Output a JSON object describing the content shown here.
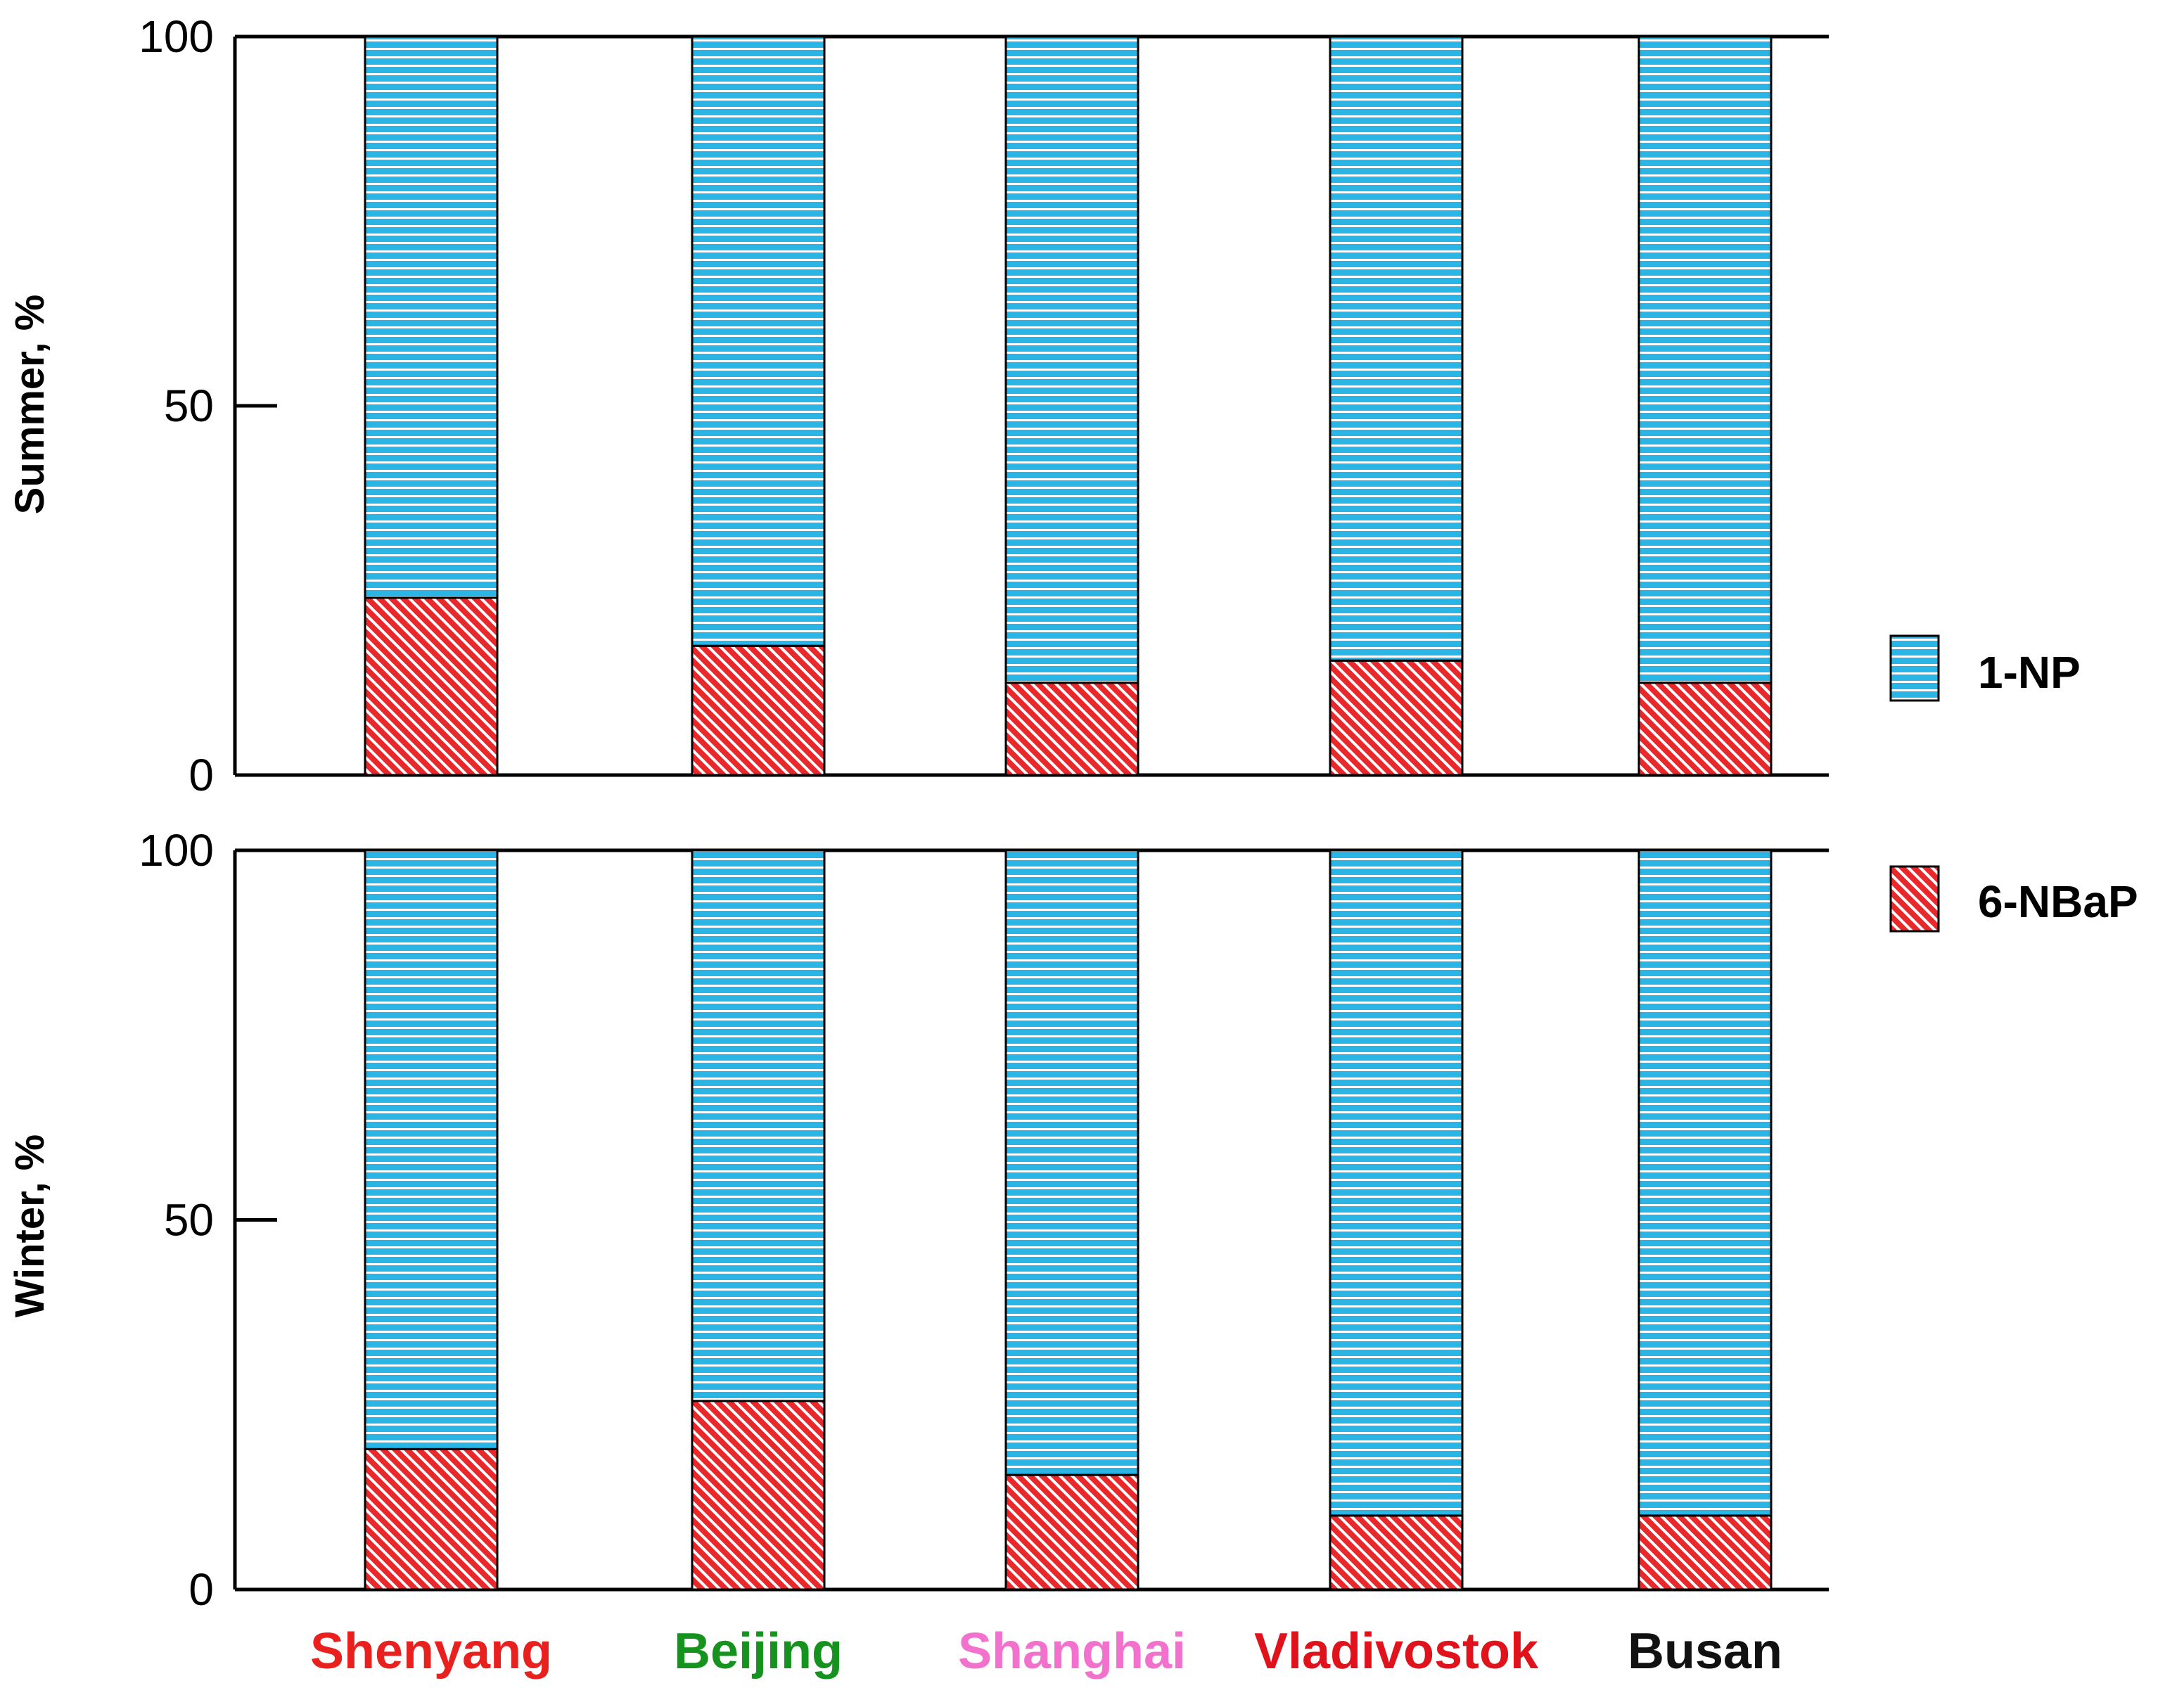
{
  "colors": {
    "np": "#29b6e6",
    "np_stripe": "#ffffff",
    "nbap": "#e8282b",
    "nbap_stripe": "#ffffff",
    "axis": "#000000"
  },
  "chart_data": {
    "type": "bar",
    "stacked": true,
    "categories": [
      "Shenyang",
      "Beijing",
      "Shanghai",
      "Vladivostok",
      "Busan"
    ],
    "category_colors": [
      "#e8201e",
      "#16921f",
      "#f271cc",
      "#e0121b",
      "#111111"
    ],
    "ylim": [
      0,
      100
    ],
    "yticks": [
      0,
      50,
      100
    ],
    "legend": {
      "placement": "right",
      "entries": [
        {
          "key": "np",
          "label": "1-NP"
        },
        {
          "key": "nbap",
          "label": "6-NBaP"
        }
      ]
    },
    "panels": [
      {
        "ylabel": "Summer, %",
        "series": [
          {
            "name": "6-NBaP",
            "key": "nbap",
            "values": [
              24,
              17.5,
              12.5,
              15.5,
              12.5
            ]
          },
          {
            "name": "1-NP",
            "key": "np",
            "values": [
              76,
              82.5,
              87.5,
              84.5,
              87.5
            ]
          }
        ]
      },
      {
        "ylabel": "Winter, %",
        "series": [
          {
            "name": "6-NBaP",
            "key": "nbap",
            "values": [
              19,
              25.5,
              15.5,
              10,
              10
            ]
          },
          {
            "name": "1-NP",
            "key": "np",
            "values": [
              81,
              74.5,
              84.5,
              90,
              90
            ]
          }
        ]
      }
    ]
  }
}
